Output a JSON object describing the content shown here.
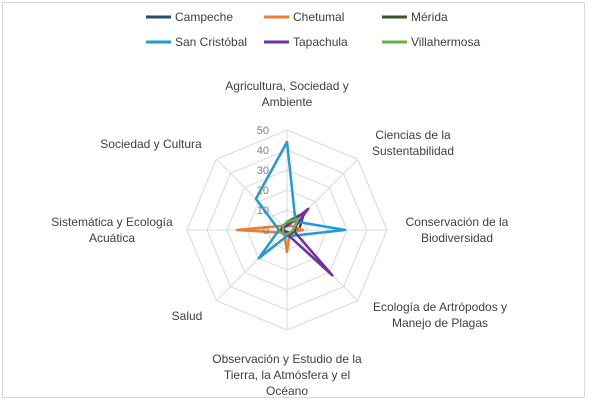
{
  "chart_data": {
    "type": "radar",
    "title": "",
    "rmax": 50,
    "ticks": [
      0,
      10,
      20,
      30,
      40,
      50
    ],
    "axes": [
      "Agricultura, Sociedad y Ambiente",
      "Ciencias de la Sustentabilidad",
      "Conservación de la Biodiversidad",
      "Ecología de Artrópodos y Manejo de Plagas",
      "Observación y Estudio de la Tierra, la Atmósfera y el Océano",
      "Salud",
      "Sistemática y Ecología Acuática",
      "Sociedad y Cultura"
    ],
    "axis_label_lines": [
      [
        "Agricultura, Sociedad y",
        "Ambiente"
      ],
      [
        "Ciencias de la",
        "Sustentabilidad"
      ],
      [
        "Conservación de la",
        "Biodiversidad"
      ],
      [
        "Ecología de Artrópodos y",
        "Manejo de Plagas"
      ],
      [
        "Observación y Estudio de la",
        "Tierra, la Atmósfera y el",
        "Océano"
      ],
      [
        "Salud"
      ],
      [
        "Sistemática y Ecología",
        "Acuática"
      ],
      [
        "Sociedad y Cultura"
      ]
    ],
    "series": [
      {
        "name": "Campeche",
        "color": "#1f4e79",
        "values": [
          4,
          12,
          6,
          2,
          1,
          1,
          2,
          2
        ]
      },
      {
        "name": "Chetumal",
        "color": "#ed7d31",
        "values": [
          2,
          3,
          8,
          2,
          11,
          2,
          25,
          3
        ]
      },
      {
        "name": "Mérida",
        "color": "#375623",
        "values": [
          3,
          7,
          4,
          3,
          2,
          2,
          3,
          3
        ]
      },
      {
        "name": "San Cristóbal",
        "color": "#1f9bd7",
        "values": [
          44,
          6,
          29,
          4,
          3,
          20,
          4,
          22
        ]
      },
      {
        "name": "Tapachula",
        "color": "#7030a0",
        "values": [
          2,
          15,
          3,
          32,
          2,
          2,
          2,
          2
        ]
      },
      {
        "name": "Villahermosa",
        "color": "#70ad47",
        "values": [
          4,
          8,
          3,
          2,
          2,
          3,
          2,
          3
        ]
      }
    ],
    "legend_position": "top",
    "grid": true
  }
}
